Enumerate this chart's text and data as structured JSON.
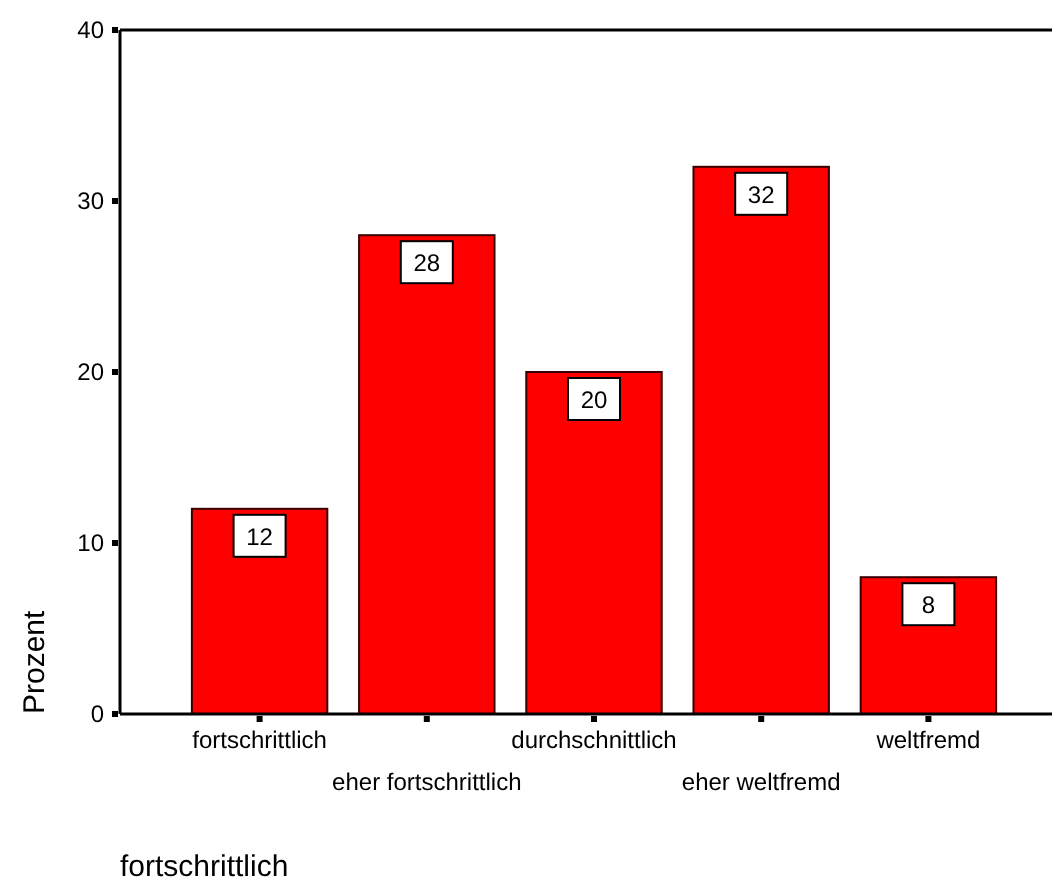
{
  "chart_data": {
    "type": "bar",
    "xlabel": "fortschrittlich",
    "ylabel": "Prozent",
    "categories": [
      "fortschrittlich",
      "eher fortschrittlich",
      "durchschnittlich",
      "eher weltfremd",
      "weltfremd"
    ],
    "values": [
      12,
      28,
      20,
      32,
      8
    ],
    "color": "#ff0000",
    "ylim": [
      0,
      40
    ],
    "yticks": [
      0,
      10,
      20,
      30,
      40
    ],
    "data_labels": true
  }
}
